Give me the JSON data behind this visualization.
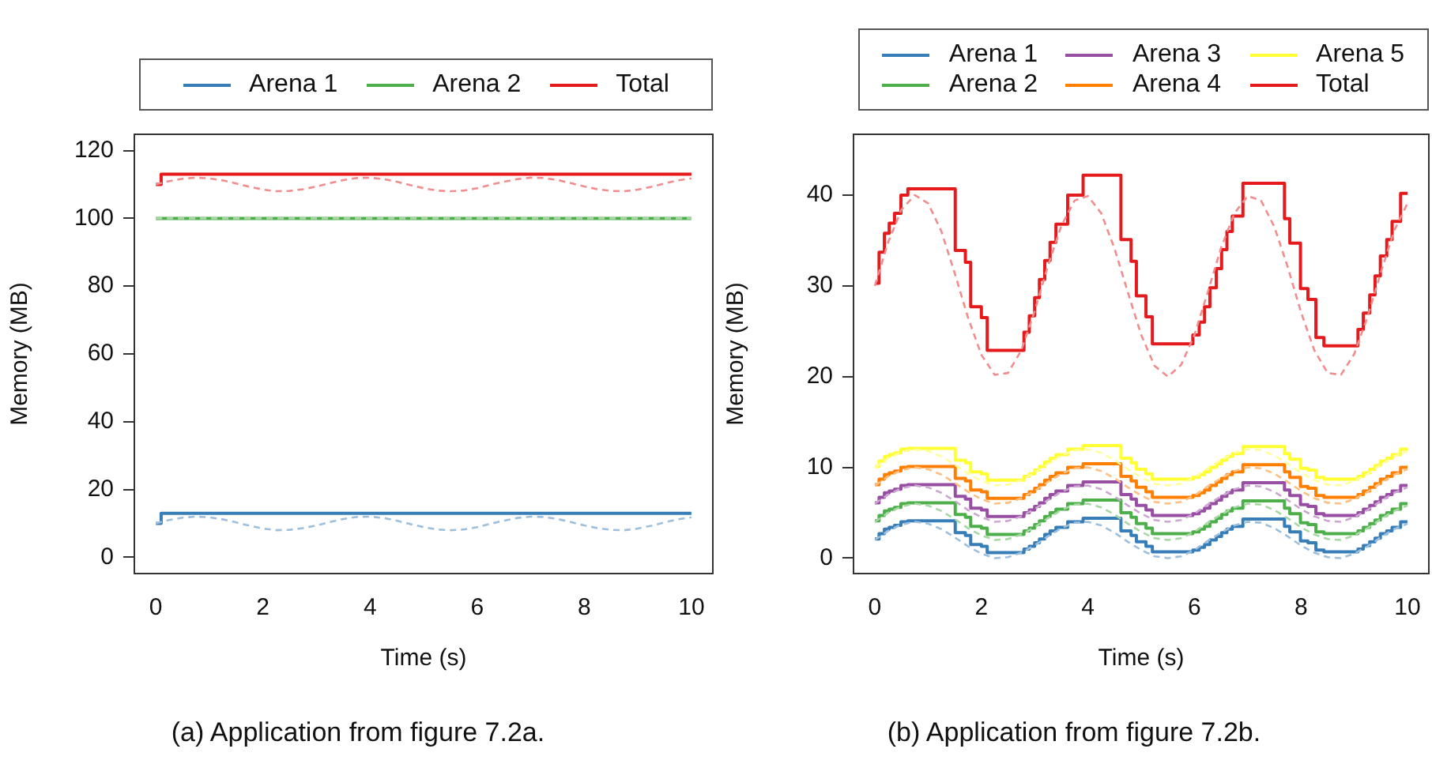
{
  "chart_data": [
    {
      "type": "line",
      "xlabel": "Time (s)",
      "ylabel": "Memory (MB)",
      "annotations": [
        "(a) Application from figure 7.2a."
      ],
      "legend": "top",
      "x": [
        0,
        0.25,
        0.5,
        0.75,
        1,
        1.25,
        1.5,
        1.75,
        2,
        2.25,
        2.5,
        2.75,
        3,
        3.25,
        3.5,
        3.75,
        4,
        4.25,
        4.5,
        4.75,
        5,
        5.25,
        5.5,
        5.75,
        6,
        6.25,
        6.5,
        6.75,
        7,
        7.25,
        7.5,
        7.75,
        8,
        8.25,
        8.5,
        8.75,
        9,
        9.25,
        9.5,
        9.75,
        10
      ],
      "xlim": [
        -0.4,
        10.4
      ],
      "xticks": [
        0,
        2,
        4,
        6,
        8,
        10
      ],
      "ylim": [
        -4.8,
        124.8
      ],
      "yticks": [
        0,
        20,
        40,
        60,
        80,
        100,
        120
      ],
      "series": [
        {
          "type": "line",
          "line_style": "dashed",
          "color": "#9ebfdc",
          "values": [
            10,
            11,
            11.7,
            12,
            11.8,
            11.2,
            10.3,
            9.3,
            8.5,
            8,
            8.1,
            8.6,
            9.4,
            10.4,
            11.3,
            11.9,
            12,
            11.6,
            10.8,
            9.8,
            8.9,
            8.2,
            8,
            8.2,
            8.9,
            9.9,
            10.8,
            11.6,
            12,
            11.9,
            11.3,
            10.4,
            9.4,
            8.6,
            8.1,
            8,
            8.5,
            9.3,
            10.3,
            11.2,
            11.8
          ]
        },
        {
          "type": "line",
          "line_style": "dashed",
          "color": "#a6d7a4",
          "x": [
            0,
            10
          ],
          "values": [
            100,
            100
          ]
        },
        {
          "type": "line",
          "line_style": "dashed",
          "color": "#f28d8e",
          "values": [
            110,
            111,
            111.7,
            112,
            111.8,
            111.2,
            110.3,
            109.3,
            108.5,
            108,
            108.1,
            108.6,
            109.4,
            110.4,
            111.3,
            111.9,
            112,
            111.6,
            110.8,
            109.8,
            108.9,
            108.2,
            108,
            108.2,
            108.9,
            109.9,
            110.8,
            111.6,
            112,
            111.9,
            111.3,
            110.4,
            109.4,
            108.6,
            108.1,
            108,
            108.5,
            109.3,
            110.3,
            111.2,
            111.8
          ]
        },
        {
          "name": "Arena 1",
          "type": "step",
          "color": "#377eb8",
          "x": [
            0,
            0.1,
            10
          ],
          "values": [
            10,
            13,
            13
          ]
        },
        {
          "name": "Arena 2",
          "type": "step",
          "color": "#4daf4a",
          "x": [
            0,
            10
          ],
          "values": [
            100,
            100
          ]
        },
        {
          "name": "Total",
          "type": "step",
          "color": "#e41a1c",
          "x": [
            0,
            0.1,
            10
          ],
          "values": [
            110,
            113,
            113
          ]
        }
      ]
    },
    {
      "type": "line",
      "xlabel": "Time (s)",
      "ylabel": "Memory (MB)",
      "annotations": [
        "(b) Application from figure 7.2b."
      ],
      "legend": "top",
      "x": [
        0,
        0.25,
        0.5,
        0.75,
        1,
        1.25,
        1.5,
        1.75,
        2,
        2.25,
        2.5,
        2.75,
        3,
        3.25,
        3.5,
        3.75,
        4,
        4.25,
        4.5,
        4.75,
        5,
        5.25,
        5.5,
        5.75,
        6,
        6.25,
        6.5,
        6.75,
        7,
        7.25,
        7.5,
        7.75,
        8,
        8.25,
        8.5,
        8.75,
        9,
        9.25,
        9.5,
        9.75,
        10
      ],
      "xlim": [
        -0.4,
        10.4
      ],
      "xticks": [
        0,
        2,
        4,
        6,
        8,
        10
      ],
      "ylim": [
        -1.7,
        46.7
      ],
      "yticks": [
        0,
        10,
        20,
        30,
        40
      ],
      "series": [
        {
          "type": "line",
          "line_style": "dashed",
          "color": "#9ebfdc",
          "values": [
            2,
            3,
            3.7,
            4,
            3.8,
            3.2,
            2.3,
            1.3,
            0.5,
            0,
            0.1,
            0.6,
            1.4,
            2.4,
            3.3,
            3.9,
            4,
            3.6,
            2.8,
            1.8,
            0.9,
            0.2,
            0,
            0.2,
            0.9,
            1.9,
            2.8,
            3.6,
            4,
            3.9,
            3.3,
            2.4,
            1.4,
            0.6,
            0.1,
            0,
            0.5,
            1.3,
            2.3,
            3.2,
            3.8
          ]
        },
        {
          "type": "line",
          "line_style": "dashed",
          "color": "#a6d7a4",
          "values": [
            4,
            5,
            5.7,
            6,
            5.8,
            5.2,
            4.3,
            3.3,
            2.5,
            2,
            2.1,
            2.6,
            3.4,
            4.4,
            5.3,
            5.9,
            6,
            5.6,
            4.8,
            3.8,
            2.9,
            2.2,
            2,
            2.2,
            2.9,
            3.9,
            4.8,
            5.6,
            6,
            5.9,
            5.3,
            4.4,
            3.4,
            2.6,
            2.1,
            2,
            2.5,
            3.3,
            4.3,
            5.2,
            5.8
          ]
        },
        {
          "type": "line",
          "line_style": "dashed",
          "color": "#cba6d1",
          "values": [
            6,
            7,
            7.7,
            8,
            7.8,
            7.2,
            6.3,
            5.3,
            4.5,
            4,
            4.1,
            4.6,
            5.4,
            6.4,
            7.3,
            7.9,
            8,
            7.6,
            6.8,
            5.8,
            4.9,
            4.2,
            4,
            4.2,
            4.9,
            5.9,
            6.8,
            7.6,
            8,
            7.9,
            7.3,
            6.4,
            5.4,
            4.6,
            4.1,
            4,
            4.5,
            5.3,
            6.3,
            7.2,
            7.8
          ]
        },
        {
          "type": "line",
          "line_style": "dashed",
          "color": "#ffbf80",
          "values": [
            8,
            9,
            9.7,
            10,
            9.8,
            9.2,
            8.3,
            7.3,
            6.5,
            6,
            6.1,
            6.6,
            7.4,
            8.4,
            9.3,
            9.9,
            10,
            9.6,
            8.8,
            7.8,
            6.9,
            6.2,
            6,
            6.2,
            6.9,
            7.9,
            8.8,
            9.6,
            10,
            9.9,
            9.3,
            8.4,
            7.4,
            6.6,
            6.1,
            6,
            6.5,
            7.3,
            8.3,
            9.2,
            9.8
          ]
        },
        {
          "type": "line",
          "line_style": "dashed",
          "color": "#ffff99",
          "values": [
            10,
            11,
            11.7,
            12,
            11.8,
            11.2,
            10.3,
            9.3,
            8.5,
            8,
            8.1,
            8.6,
            9.4,
            10.4,
            11.3,
            11.9,
            12,
            11.6,
            10.8,
            9.8,
            8.9,
            8.2,
            8,
            8.2,
            8.9,
            9.9,
            10.8,
            11.6,
            12,
            11.9,
            11.3,
            10.4,
            9.4,
            8.6,
            8.1,
            8,
            8.5,
            9.3,
            10.3,
            11.2,
            11.8
          ]
        },
        {
          "type": "line",
          "line_style": "dashed",
          "color": "#f28d8e",
          "values": [
            30,
            34.8,
            38.4,
            40,
            39.1,
            36,
            31.4,
            26.5,
            22.4,
            20.2,
            20.4,
            22.9,
            27.2,
            32.2,
            36.6,
            39.4,
            39.9,
            38,
            34.1,
            29.3,
            24.6,
            21.2,
            20,
            21.3,
            24.6,
            29.3,
            34.2,
            38,
            39.9,
            39.4,
            36.5,
            32.1,
            27.1,
            22.9,
            20.4,
            20.2,
            22.5,
            26.6,
            31.5,
            36.1,
            39.1
          ]
        },
        {
          "name": "Arena 1",
          "type": "step",
          "color": "#377eb8",
          "x": [
            0,
            0.08,
            0.18,
            0.27,
            0.37,
            0.49,
            0.62,
            1.51,
            1.7,
            1.8,
            2,
            2.11,
            2.8,
            2.9,
            3,
            3.09,
            3.19,
            3.29,
            3.4,
            3.62,
            3.91,
            4.62,
            4.81,
            4.91,
            5.09,
            5.21,
            5.97,
            6.09,
            6.19,
            6.29,
            6.41,
            6.51,
            6.61,
            6.71,
            6.91,
            7.69,
            7.79,
            7.99,
            8.13,
            8.28,
            8.43,
            9.07,
            9.17,
            9.29,
            9.39,
            9.49,
            9.61,
            9.71,
            9.87,
            10
          ],
          "values": [
            2.1,
            2.7,
            3.2,
            3.4,
            3.6,
            4.0,
            4.1,
            2.8,
            2.5,
            1.5,
            1.3,
            0.6,
            1.0,
            1.3,
            1.7,
            2.1,
            2.6,
            3.0,
            3.4,
            4.0,
            4.4,
            3.0,
            2.5,
            1.8,
            1.3,
            0.7,
            0.9,
            1.2,
            1.5,
            2.0,
            2.4,
            2.8,
            3.2,
            3.5,
            4.3,
            3.5,
            2.9,
            1.9,
            1.7,
            0.9,
            0.7,
            1.0,
            1.4,
            1.8,
            2.2,
            2.7,
            3.0,
            3.4,
            4.0,
            4.0
          ]
        },
        {
          "name": "Arena 2",
          "type": "step",
          "color": "#4daf4a",
          "x": [
            0,
            0.08,
            0.18,
            0.27,
            0.37,
            0.49,
            0.62,
            1.51,
            1.7,
            1.8,
            2,
            2.11,
            2.8,
            2.9,
            3,
            3.09,
            3.19,
            3.29,
            3.4,
            3.62,
            3.91,
            4.62,
            4.81,
            4.91,
            5.09,
            5.21,
            5.97,
            6.09,
            6.19,
            6.29,
            6.41,
            6.51,
            6.61,
            6.71,
            6.91,
            7.69,
            7.79,
            7.99,
            8.13,
            8.28,
            8.43,
            9.07,
            9.17,
            9.29,
            9.39,
            9.49,
            9.61,
            9.71,
            9.87,
            10
          ],
          "values": [
            4.1,
            4.7,
            5.2,
            5.4,
            5.6,
            6.0,
            6.1,
            4.8,
            4.5,
            3.5,
            3.3,
            2.6,
            3.0,
            3.3,
            3.7,
            4.1,
            4.6,
            5.0,
            5.4,
            6.0,
            6.4,
            5.0,
            4.5,
            3.8,
            3.3,
            2.7,
            2.9,
            3.2,
            3.5,
            4.0,
            4.4,
            4.8,
            5.2,
            5.5,
            6.3,
            5.5,
            4.9,
            3.9,
            3.7,
            2.9,
            2.7,
            3.0,
            3.4,
            3.8,
            4.2,
            4.7,
            5.0,
            5.4,
            6.0,
            6.0
          ]
        },
        {
          "name": "Arena 3",
          "type": "step",
          "color": "#984ea3",
          "x": [
            0,
            0.08,
            0.18,
            0.27,
            0.37,
            0.49,
            0.62,
            1.51,
            1.7,
            1.8,
            2,
            2.11,
            2.8,
            2.9,
            3,
            3.09,
            3.19,
            3.29,
            3.4,
            3.62,
            3.91,
            4.62,
            4.81,
            4.91,
            5.09,
            5.21,
            5.97,
            6.09,
            6.19,
            6.29,
            6.41,
            6.51,
            6.61,
            6.71,
            6.91,
            7.69,
            7.79,
            7.99,
            8.13,
            8.28,
            8.43,
            9.07,
            9.17,
            9.29,
            9.39,
            9.49,
            9.61,
            9.71,
            9.87,
            10
          ],
          "values": [
            6.1,
            6.7,
            7.2,
            7.4,
            7.6,
            8.0,
            8.1,
            6.8,
            6.5,
            5.5,
            5.3,
            4.6,
            5.0,
            5.3,
            5.7,
            6.1,
            6.6,
            7.0,
            7.4,
            8.0,
            8.4,
            7.0,
            6.5,
            5.8,
            5.3,
            4.7,
            4.9,
            5.2,
            5.5,
            6.0,
            6.4,
            6.8,
            7.2,
            7.5,
            8.3,
            7.5,
            6.9,
            5.9,
            5.7,
            4.9,
            4.7,
            5.0,
            5.4,
            5.8,
            6.2,
            6.7,
            7.0,
            7.4,
            8.0,
            8.0
          ]
        },
        {
          "name": "Arena 4",
          "type": "step",
          "color": "#ff7f00",
          "x": [
            0,
            0.08,
            0.18,
            0.27,
            0.37,
            0.49,
            0.62,
            1.51,
            1.7,
            1.8,
            2,
            2.11,
            2.8,
            2.9,
            3,
            3.09,
            3.19,
            3.29,
            3.4,
            3.62,
            3.91,
            4.62,
            4.81,
            4.91,
            5.09,
            5.21,
            5.97,
            6.09,
            6.19,
            6.29,
            6.41,
            6.51,
            6.61,
            6.71,
            6.91,
            7.69,
            7.79,
            7.99,
            8.13,
            8.28,
            8.43,
            9.07,
            9.17,
            9.29,
            9.39,
            9.49,
            9.61,
            9.71,
            9.87,
            10
          ],
          "values": [
            8.1,
            8.7,
            9.2,
            9.4,
            9.6,
            10.0,
            10.1,
            8.8,
            8.5,
            7.5,
            7.3,
            6.6,
            7.0,
            7.3,
            7.7,
            8.1,
            8.6,
            9.0,
            9.4,
            10.0,
            10.4,
            9.0,
            8.5,
            7.8,
            7.3,
            6.7,
            6.9,
            7.2,
            7.5,
            8.0,
            8.4,
            8.8,
            9.2,
            9.5,
            10.3,
            9.5,
            8.9,
            7.9,
            7.7,
            6.9,
            6.7,
            7.0,
            7.4,
            7.8,
            8.2,
            8.7,
            9.0,
            9.4,
            10.0,
            10.0
          ]
        },
        {
          "name": "Arena 5",
          "type": "step",
          "color": "#ffff33",
          "x": [
            0,
            0.08,
            0.18,
            0.27,
            0.37,
            0.49,
            0.62,
            1.51,
            1.7,
            1.8,
            2,
            2.11,
            2.8,
            2.9,
            3,
            3.09,
            3.19,
            3.29,
            3.4,
            3.62,
            3.91,
            4.62,
            4.81,
            4.91,
            5.09,
            5.21,
            5.97,
            6.09,
            6.19,
            6.29,
            6.41,
            6.51,
            6.61,
            6.71,
            6.91,
            7.69,
            7.79,
            7.99,
            8.13,
            8.28,
            8.43,
            9.07,
            9.17,
            9.29,
            9.39,
            9.49,
            9.61,
            9.71,
            9.87,
            10
          ],
          "values": [
            10.1,
            10.7,
            11.2,
            11.4,
            11.6,
            12.0,
            12.1,
            10.8,
            10.5,
            9.5,
            9.3,
            8.6,
            9.0,
            9.3,
            9.7,
            10.1,
            10.6,
            11.0,
            11.4,
            12.0,
            12.4,
            11.0,
            10.5,
            9.8,
            9.3,
            8.7,
            8.9,
            9.2,
            9.5,
            10.0,
            10.4,
            10.8,
            11.2,
            11.5,
            12.3,
            11.5,
            10.9,
            9.9,
            9.7,
            8.9,
            8.7,
            9.0,
            9.4,
            9.8,
            10.2,
            10.7,
            11.0,
            11.4,
            12.0,
            12.0
          ]
        },
        {
          "name": "Total",
          "type": "step",
          "color": "#e41a1c",
          "x": [
            0,
            0.08,
            0.18,
            0.27,
            0.37,
            0.49,
            0.62,
            1.51,
            1.7,
            1.8,
            2,
            2.11,
            2.8,
            2.9,
            3,
            3.09,
            3.19,
            3.29,
            3.4,
            3.62,
            3.91,
            4.62,
            4.81,
            4.91,
            5.09,
            5.21,
            5.97,
            6.09,
            6.19,
            6.29,
            6.41,
            6.51,
            6.61,
            6.71,
            6.91,
            7.69,
            7.79,
            7.99,
            8.13,
            8.28,
            8.43,
            9.07,
            9.17,
            9.29,
            9.39,
            9.49,
            9.61,
            9.71,
            9.87,
            10
          ],
          "values": [
            30.3,
            33.7,
            35.8,
            36.9,
            38.0,
            40.0,
            40.7,
            33.9,
            32.6,
            27.7,
            26.5,
            22.9,
            24.9,
            26.7,
            28.7,
            30.7,
            32.8,
            34.8,
            36.8,
            40.0,
            42.2,
            35.1,
            32.7,
            28.9,
            26.6,
            23.6,
            24.6,
            26.0,
            27.7,
            29.8,
            31.9,
            34.0,
            36.0,
            37.7,
            41.3,
            37.4,
            34.7,
            29.7,
            28.5,
            24.3,
            23.4,
            25.2,
            27.0,
            29.0,
            31.1,
            33.3,
            35.1,
            37.1,
            40.2,
            40.2
          ]
        }
      ]
    }
  ]
}
